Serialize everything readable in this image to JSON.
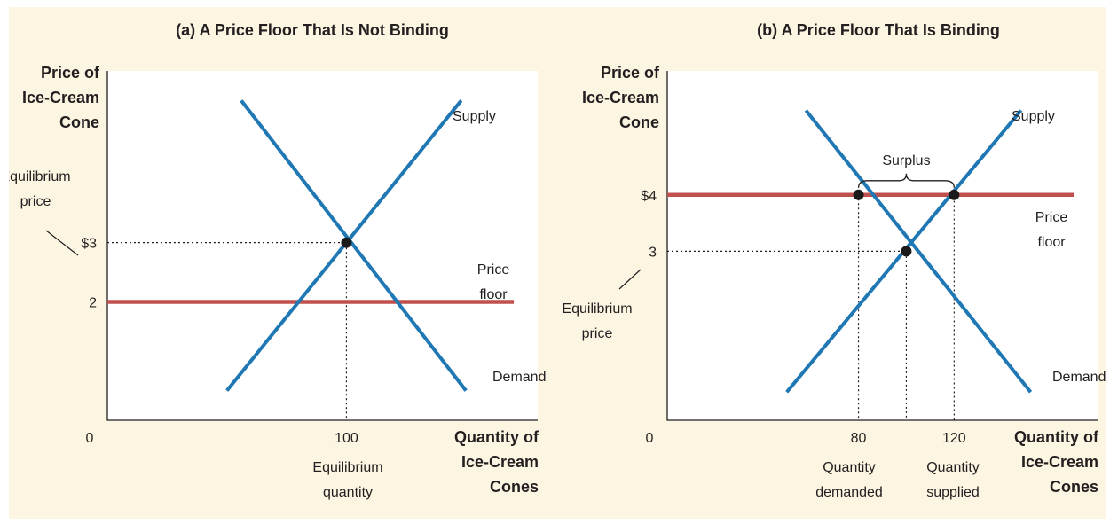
{
  "chart_data": [
    {
      "type": "line",
      "title": "(a) A Price Floor That Is Not Binding",
      "xlabel": [
        "Quantity of",
        "Ice-Cream",
        "Cones"
      ],
      "ylabel": [
        "Price of",
        "Ice-Cream",
        "Cone"
      ],
      "xlim": [
        0,
        180
      ],
      "ylim": [
        0,
        5.9
      ],
      "origin_label": "0",
      "x_ticks": [
        {
          "value": 100,
          "label": "100"
        }
      ],
      "y_ticks": [
        {
          "value": 3,
          "label": "$3"
        },
        {
          "value": 2,
          "label": "2"
        }
      ],
      "series": [
        {
          "name": "Supply",
          "color": "#1f78b4",
          "points": [
            [
              50,
              0.5
            ],
            [
              148,
              5.4
            ]
          ]
        },
        {
          "name": "Demand",
          "color": "#1f78b4",
          "points": [
            [
              56,
              5.4
            ],
            [
              150,
              0.5
            ]
          ]
        }
      ],
      "price_floor": {
        "value": 2,
        "label": [
          "Price",
          "floor"
        ],
        "color": "#c0504d",
        "x_range": [
          0,
          170
        ]
      },
      "points": [
        {
          "x": 100,
          "y": 3
        }
      ],
      "guides": [
        {
          "x": 100,
          "y": 3
        }
      ],
      "annotations": [
        {
          "text": [
            "Equilibrium",
            "price"
          ],
          "points_to": "y-tick-3"
        },
        {
          "text": [
            "Equilibrium",
            "quantity"
          ],
          "under": "x-tick-100"
        }
      ]
    },
    {
      "type": "line",
      "title": "(b) A Price Floor That Is Binding",
      "xlabel": [
        "Quantity of",
        "Ice-Cream",
        "Cones"
      ],
      "ylabel": [
        "Price of",
        "Ice-Cream",
        "Cone"
      ],
      "xlim": [
        0,
        180
      ],
      "ylim": [
        0,
        6.2
      ],
      "origin_label": "0",
      "x_ticks": [
        {
          "value": 80,
          "label": "80"
        },
        {
          "value": 120,
          "label": "120"
        }
      ],
      "y_ticks": [
        {
          "value": 4,
          "label": "$4"
        },
        {
          "value": 3,
          "label": "3"
        }
      ],
      "series": [
        {
          "name": "Supply",
          "color": "#1f78b4",
          "points": [
            [
              50,
              0.5
            ],
            [
              148,
              5.5
            ]
          ]
        },
        {
          "name": "Demand",
          "color": "#1f78b4",
          "points": [
            [
              58,
              5.5
            ],
            [
              152,
              0.5
            ]
          ]
        }
      ],
      "price_floor": {
        "value": 4,
        "label": [
          "Price",
          "floor"
        ],
        "color": "#c0504d",
        "x_range": [
          0,
          170
        ]
      },
      "points": [
        {
          "x": 80,
          "y": 4
        },
        {
          "x": 120,
          "y": 4
        },
        {
          "x": 100,
          "y": 3
        }
      ],
      "guides": [
        {
          "x": 100,
          "y": 3
        },
        {
          "x": 80,
          "y": 4
        },
        {
          "x": 120,
          "y": 4
        }
      ],
      "surplus": {
        "from": 80,
        "to": 120,
        "label": "Surplus"
      },
      "annotations": [
        {
          "text": [
            "Equilibrium",
            "price"
          ],
          "points_to": "y-tick-3"
        },
        {
          "text": [
            "Quantity",
            "demanded"
          ],
          "under": "x-tick-80"
        },
        {
          "text": [
            "Quantity",
            "supplied"
          ],
          "under": "x-tick-120"
        }
      ]
    }
  ]
}
